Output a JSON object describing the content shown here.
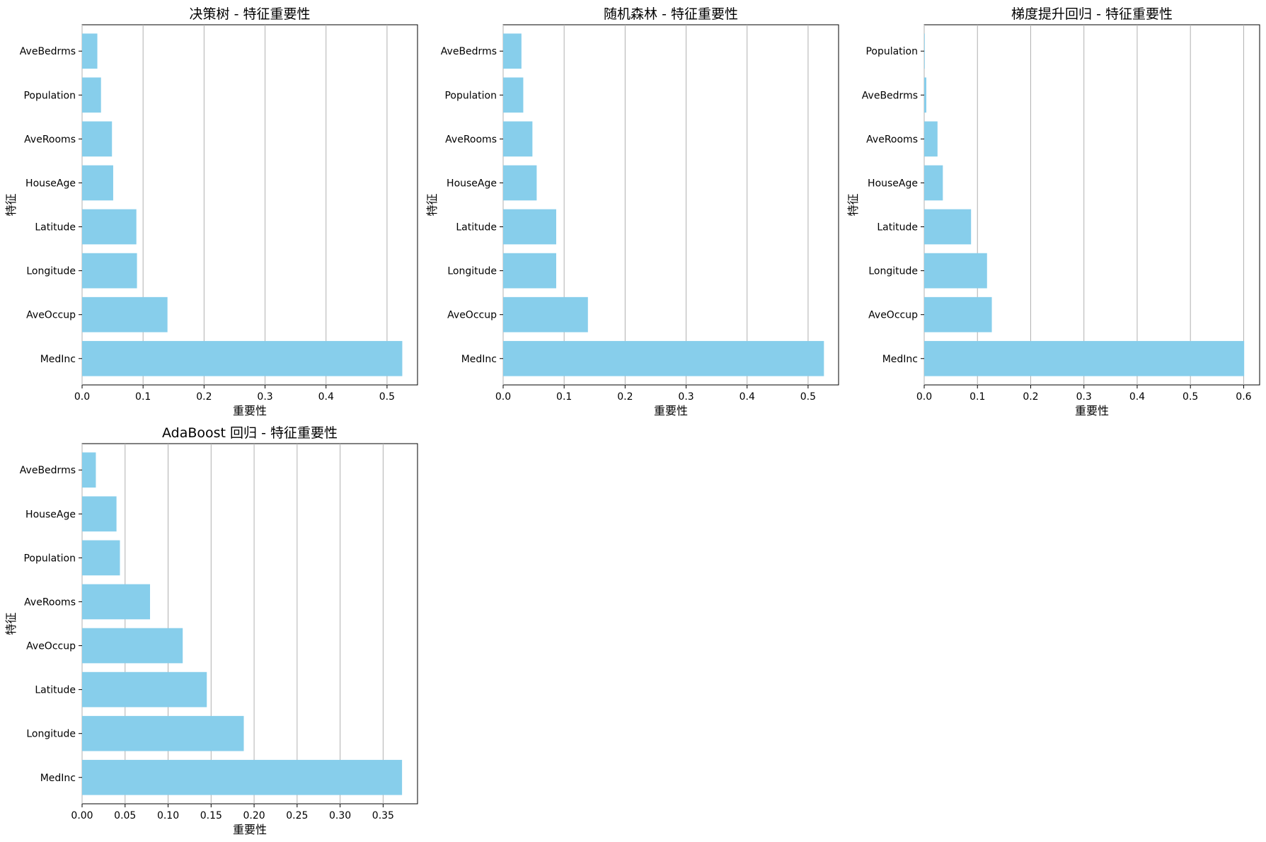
{
  "chart_data": [
    {
      "type": "bar",
      "orientation": "horizontal",
      "title": "决策树 - 特征重要性",
      "xlabel": "重要性",
      "ylabel": "特征",
      "xlim": [
        0,
        0.55
      ],
      "xticks": [
        "0.0",
        "0.1",
        "0.2",
        "0.3",
        "0.4",
        "0.5"
      ],
      "grid": "x",
      "bar_color": "#87CEEB",
      "categories": [
        "AveBedrms",
        "Population",
        "AveRooms",
        "HouseAge",
        "Latitude",
        "Longitude",
        "AveOccup",
        "MedInc"
      ],
      "values": [
        0.025,
        0.031,
        0.049,
        0.051,
        0.089,
        0.09,
        0.14,
        0.525
      ]
    },
    {
      "type": "bar",
      "orientation": "horizontal",
      "title": "随机森林 - 特征重要性",
      "xlabel": "重要性",
      "ylabel": "特征",
      "xlim": [
        0,
        0.55
      ],
      "xticks": [
        "0.0",
        "0.1",
        "0.2",
        "0.3",
        "0.4",
        "0.5"
      ],
      "grid": "x",
      "bar_color": "#87CEEB",
      "categories": [
        "AveBedrms",
        "Population",
        "AveRooms",
        "HouseAge",
        "Latitude",
        "Longitude",
        "AveOccup",
        "MedInc"
      ],
      "values": [
        0.03,
        0.033,
        0.048,
        0.055,
        0.087,
        0.087,
        0.139,
        0.526
      ]
    },
    {
      "type": "bar",
      "orientation": "horizontal",
      "title": "梯度提升回归 - 特征重要性",
      "xlabel": "重要性",
      "ylabel": "特征",
      "xlim": [
        0,
        0.63
      ],
      "xticks": [
        "0.0",
        "0.1",
        "0.2",
        "0.3",
        "0.4",
        "0.5",
        "0.6"
      ],
      "grid": "x",
      "bar_color": "#87CEEB",
      "categories": [
        "Population",
        "AveBedrms",
        "AveRooms",
        "HouseAge",
        "Latitude",
        "Longitude",
        "AveOccup",
        "MedInc"
      ],
      "values": [
        0.001,
        0.004,
        0.025,
        0.035,
        0.088,
        0.118,
        0.127,
        0.601
      ]
    },
    {
      "type": "bar",
      "orientation": "horizontal",
      "title": "AdaBoost 回归 - 特征重要性",
      "xlabel": "重要性",
      "ylabel": "特征",
      "xlim": [
        0,
        0.39
      ],
      "xticks": [
        "0.00",
        "0.05",
        "0.10",
        "0.15",
        "0.20",
        "0.25",
        "0.30",
        "0.35"
      ],
      "grid": "x",
      "bar_color": "#87CEEB",
      "categories": [
        "AveBedrms",
        "HouseAge",
        "Population",
        "AveRooms",
        "AveOccup",
        "Latitude",
        "Longitude",
        "MedInc"
      ],
      "values": [
        0.016,
        0.04,
        0.044,
        0.079,
        0.117,
        0.145,
        0.188,
        0.372
      ]
    }
  ]
}
